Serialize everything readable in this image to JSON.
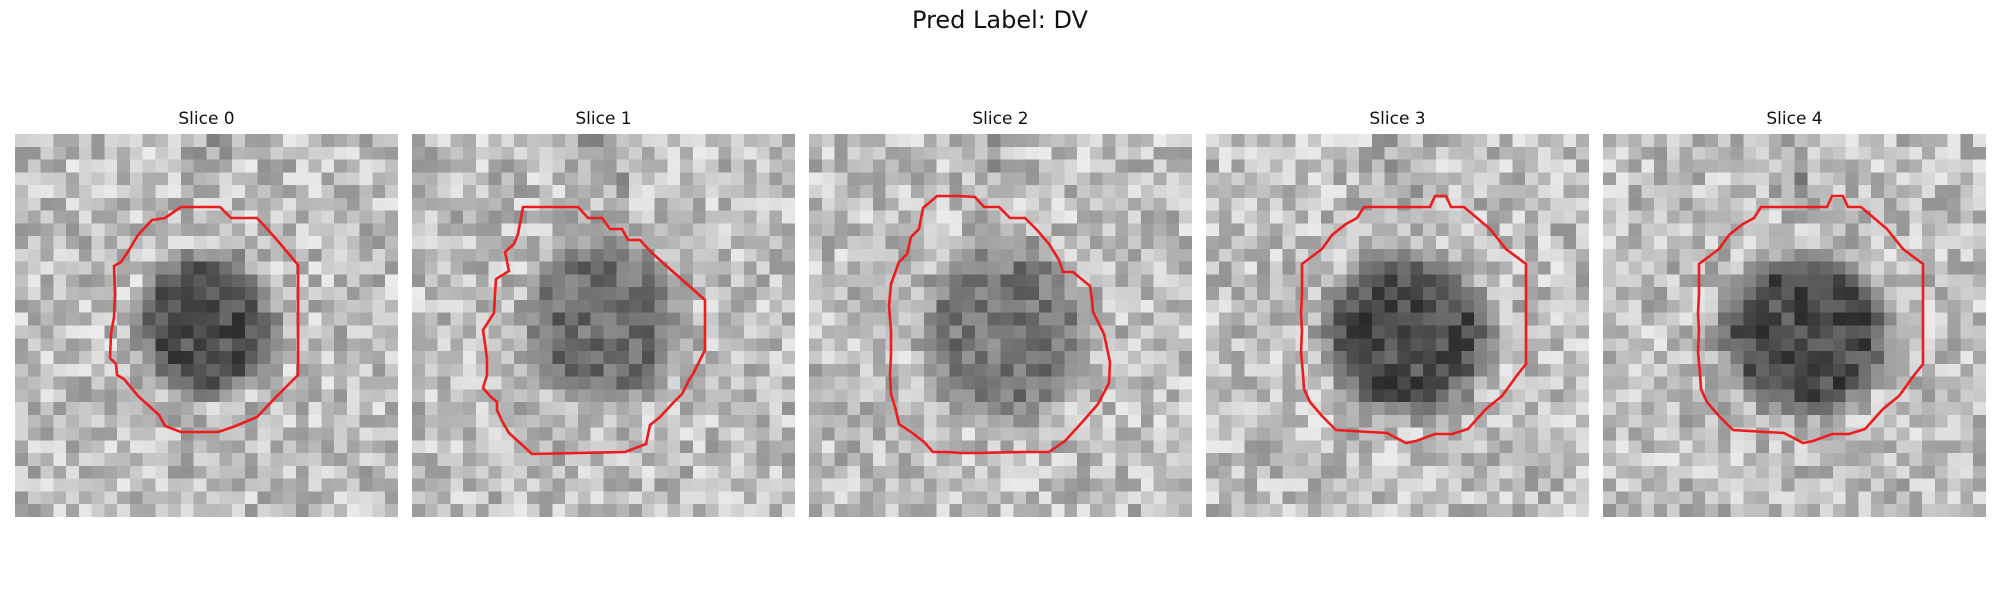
{
  "title": "Pred Label: DV",
  "contour_color": "#ee1c1c",
  "slices": [
    {
      "label": "Slice 0",
      "lesion_darkness": 0.82
    },
    {
      "label": "Slice 1",
      "lesion_darkness": 0.55
    },
    {
      "label": "Slice 2",
      "lesion_darkness": 0.45
    },
    {
      "label": "Slice 3",
      "lesion_darkness": 0.85
    },
    {
      "label": "Slice 4",
      "lesion_darkness": 0.85
    }
  ]
}
